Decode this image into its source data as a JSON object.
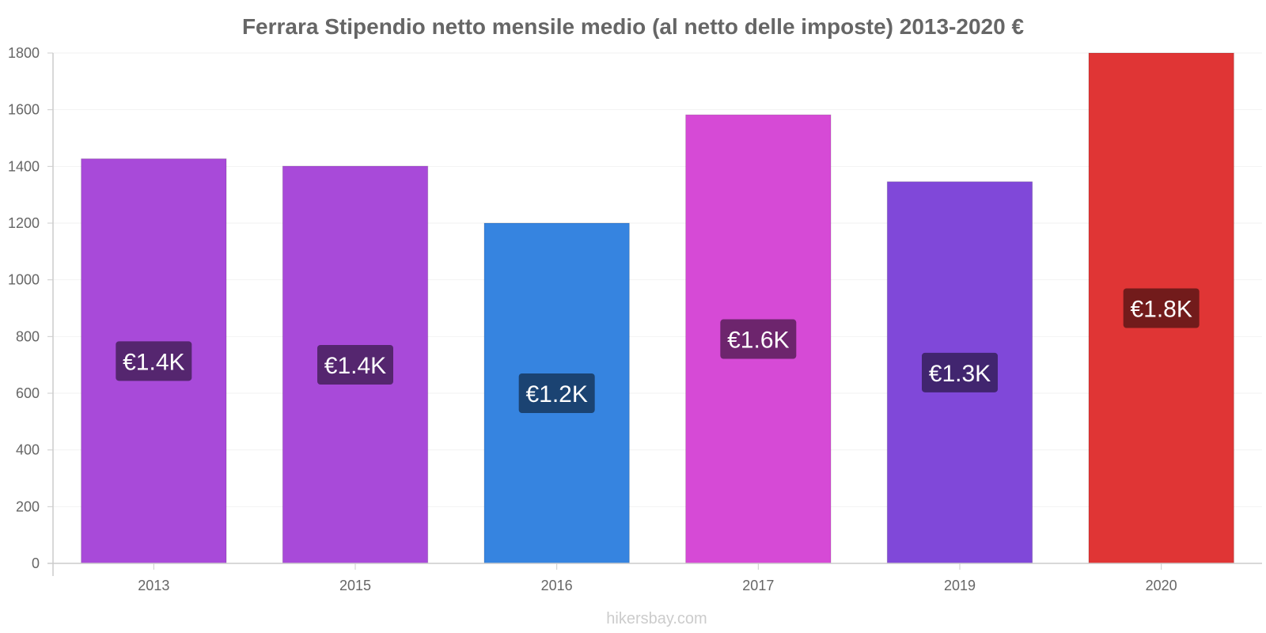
{
  "chart_data": {
    "type": "bar",
    "title": "Ferrara Stipendio netto mensile medio (al netto delle imposte) 2013-2020 €",
    "categories": [
      "2013",
      "2015",
      "2016",
      "2017",
      "2019",
      "2020"
    ],
    "values": [
      1427,
      1401,
      1200,
      1582,
      1346,
      1800
    ],
    "data_labels": [
      "€1.4K",
      "€1.4K",
      "€1.2K",
      "€1.6K",
      "€1.3K",
      "€1.8K"
    ],
    "bar_colors": [
      "#a84ad9",
      "#a84ad9",
      "#3684e0",
      "#d64ad6",
      "#8048d9",
      "#e03535"
    ],
    "label_bg_colors": [
      "#55266f",
      "#55266f",
      "#1b4372",
      "#6d256d",
      "#41256f",
      "#721b1b"
    ],
    "ylim": [
      0,
      1800
    ],
    "yticks": [
      0,
      200,
      400,
      600,
      800,
      1000,
      1200,
      1400,
      1600,
      1800
    ],
    "xlabel": "",
    "ylabel": "",
    "grid": true,
    "legend": "none"
  },
  "watermark": "hikersbay.com"
}
